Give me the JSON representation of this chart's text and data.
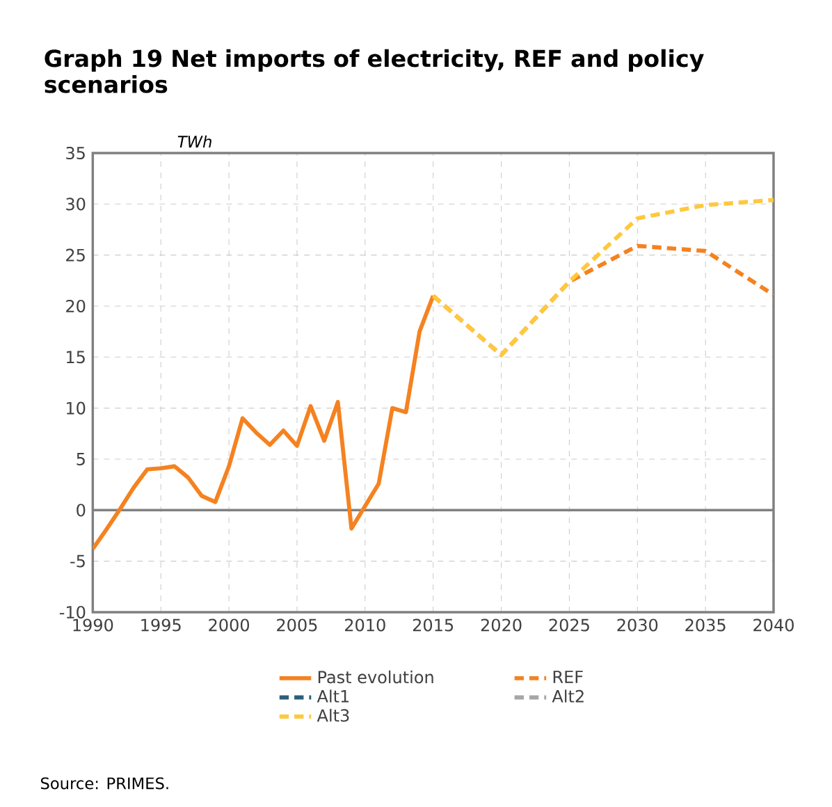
{
  "chart_data": {
    "type": "line",
    "title": "Graph 19 Net imports of electricity, REF and policy scenarios",
    "ylabel": "TWh",
    "xlim": [
      1990,
      2040
    ],
    "xticks": [
      1990,
      1995,
      2000,
      2005,
      2010,
      2015,
      2020,
      2025,
      2030,
      2035,
      2040
    ],
    "ylim": [
      -10,
      35
    ],
    "yticks": [
      -10,
      -5,
      0,
      5,
      10,
      15,
      20,
      25,
      30,
      35
    ],
    "grid": true,
    "legend": "bottom",
    "marker": "none",
    "annotations": [
      "Source: PRIMES."
    ],
    "series": [
      {
        "name": "Past evolution",
        "color": "#f58220",
        "line_style": "solid",
        "x": [
          1990,
          1991,
          1992,
          1993,
          1994,
          1995,
          1996,
          1997,
          1998,
          1999,
          2000,
          2001,
          2002,
          2003,
          2004,
          2005,
          2006,
          2007,
          2008,
          2009,
          2010,
          2011,
          2012,
          2013,
          2014,
          2015
        ],
        "values": [
          -3.8,
          -1.9,
          0.1,
          2.2,
          4.0,
          4.1,
          4.3,
          3.2,
          1.4,
          0.8,
          4.3,
          9.0,
          7.6,
          6.4,
          7.8,
          6.3,
          10.2,
          6.8,
          10.6,
          -1.8,
          0.4,
          2.6,
          10.0,
          9.6,
          17.5,
          21.0
        ]
      },
      {
        "name": "REF",
        "color": "#f58220",
        "line_style": "dashed",
        "x": [
          2015,
          2020,
          2025,
          2030,
          2035,
          2040
        ],
        "values": [
          21.0,
          15.2,
          22.4,
          25.9,
          25.4,
          21.1
        ]
      },
      {
        "name": "Alt1",
        "color": "#2a5f7a",
        "line_style": "dashed"
      },
      {
        "name": "Alt2",
        "color": "#a6a6a6",
        "line_style": "dashed"
      },
      {
        "name": "Alt3",
        "color": "#ffc83d",
        "line_style": "dashed",
        "x": [
          2015,
          2020,
          2025,
          2030,
          2035,
          2040
        ],
        "values": [
          21.0,
          15.2,
          22.4,
          28.6,
          29.9,
          30.4
        ]
      }
    ]
  }
}
